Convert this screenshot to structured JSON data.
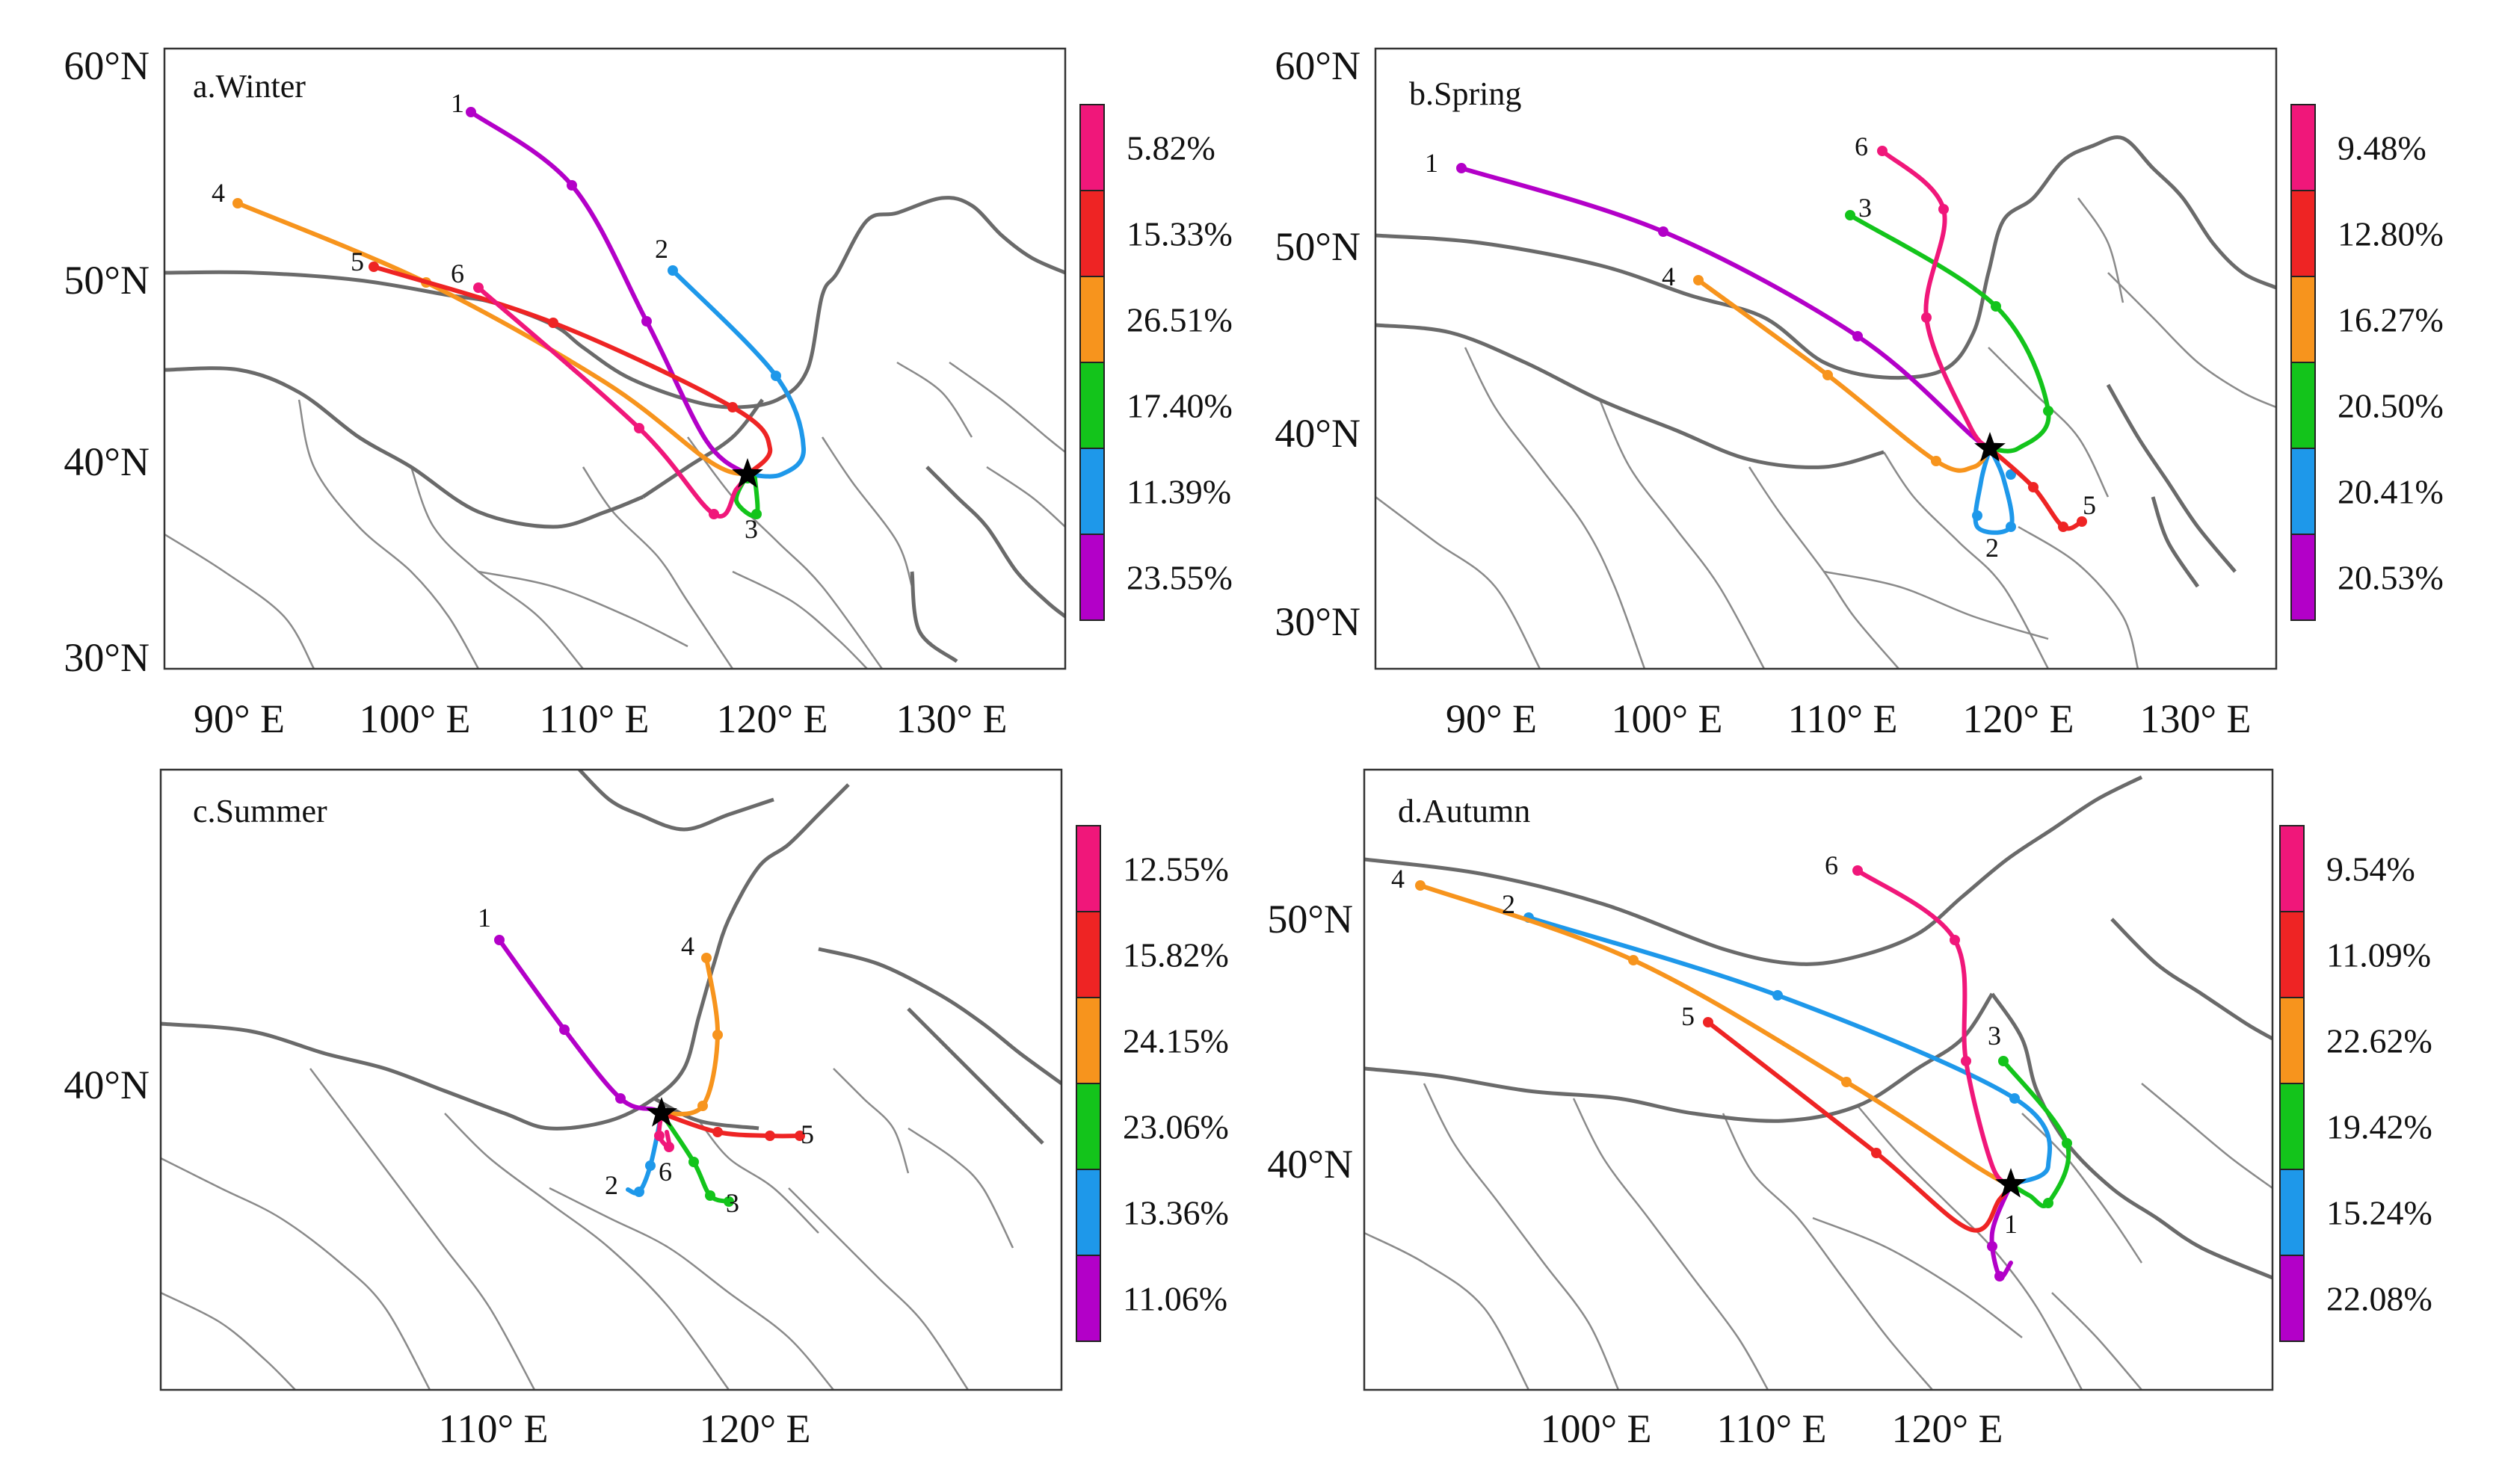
{
  "colors": {
    "t1": "#b300c8",
    "t2": "#1e98ea",
    "t3": "#13c41b",
    "t4": "#f7941d",
    "t5": "#ee2424",
    "t6": "#f0177a",
    "border": "#8a8a8a",
    "nationalBorder": "#6a6a6a",
    "star": "#000000"
  },
  "panels": [
    {
      "id": "winter",
      "title": "a.Winter",
      "lonTicks": [
        "90° E",
        "100° E",
        "110° E",
        "120° E",
        "130° E"
      ],
      "latTicks": [
        "60°N",
        "50°N",
        "40°N",
        "30°N"
      ],
      "legend": [
        "5.82%",
        "15.33%",
        "26.51%",
        "17.40%",
        "11.39%",
        "23.55%"
      ],
      "trajectoryNumbers": [
        "1",
        "2",
        "3",
        "4",
        "5",
        "6"
      ]
    },
    {
      "id": "spring",
      "title": "b.Spring",
      "lonTicks": [
        "90° E",
        "100° E",
        "110° E",
        "120° E",
        "130° E"
      ],
      "latTicks": [
        "60°N",
        "50°N",
        "40°N",
        "30°N"
      ],
      "legend": [
        "9.48%",
        "12.80%",
        "16.27%",
        "20.50%",
        "20.41%",
        "20.53%"
      ],
      "trajectoryNumbers": [
        "1",
        "2",
        "3",
        "4",
        "5",
        "6"
      ]
    },
    {
      "id": "summer",
      "title": "c.Summer",
      "lonTicks": [
        "110° E",
        "120° E"
      ],
      "latTicks": [
        "40°N"
      ],
      "legend": [
        "12.55%",
        "15.82%",
        "24.15%",
        "23.06%",
        "13.36%",
        "11.06%"
      ],
      "trajectoryNumbers": [
        "1",
        "2",
        "3",
        "4",
        "5",
        "6"
      ]
    },
    {
      "id": "autumn",
      "title": "d.Autumn",
      "lonTicks": [
        "100° E",
        "110° E",
        "120° E"
      ],
      "latTicks": [
        "50°N",
        "40°N"
      ],
      "legend": [
        "9.54%",
        "11.09%",
        "22.62%",
        "19.42%",
        "15.24%",
        "22.08%"
      ],
      "trajectoryNumbers": [
        "1",
        "2",
        "3",
        "4",
        "5",
        "6"
      ]
    }
  ]
}
